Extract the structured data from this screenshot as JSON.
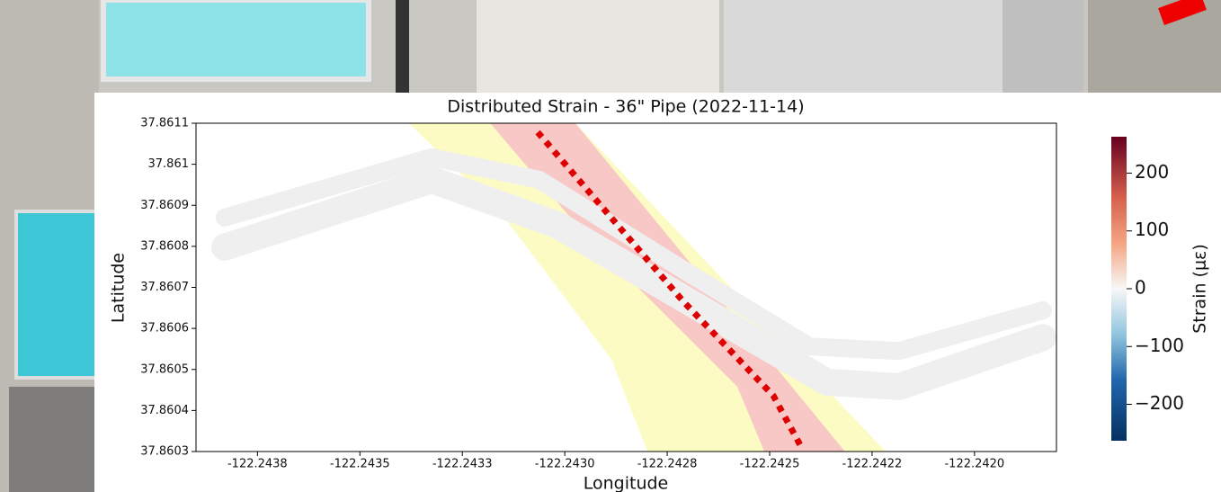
{
  "chart_data": {
    "type": "map",
    "title": "Distributed Strain - 36\" Pipe (2022-11-14)",
    "xlabel": "Longitude",
    "ylabel": "Latitude",
    "xlim": [
      -122.2439,
      -122.2418
    ],
    "ylim": [
      37.8603,
      37.8611
    ],
    "xticks": [
      {
        "value": -122.24375,
        "label": "-122.2438"
      },
      -122.2435,
      {
        "value": -122.24325,
        "label": "-122.2433"
      },
      {
        "value": -122.243,
        "label": "-122.2430"
      },
      {
        "value": -122.24275,
        "label": "-122.2428"
      },
      -122.2425,
      {
        "value": -122.24225,
        "label": "-122.2422"
      },
      {
        "value": -122.242,
        "label": "-122.2420"
      }
    ],
    "yticks": [
      37.8603,
      37.8604,
      37.8605,
      37.8606,
      37.8607,
      37.8608,
      37.8609,
      37.861,
      37.8611
    ],
    "areas": [
      {
        "color": "#fdfbc4",
        "x": [
          -122.24338,
          -122.242974,
          -122.242217,
          -122.242798,
          -122.242886,
          -122.24315
        ],
        "y": [
          37.8611,
          37.8611,
          37.8603,
          37.8603,
          37.860524,
          37.860874
        ]
      },
      {
        "color": "#f8c8c6",
        "x": [
          -122.243182,
          -122.242974,
          -122.242316,
          -122.242513,
          -122.242579,
          -122.242952
        ],
        "y": [
          37.8611,
          37.8611,
          37.8603,
          37.8603,
          37.860458,
          37.86083
        ]
      }
    ],
    "series": [
      {
        "color": "#efefef",
        "linestyle": "solid",
        "x": [
          -122.24383,
          -122.243325,
          -122.243062,
          -122.242711,
          -122.242403,
          -122.242184,
          -122.241833
        ],
        "y": [
          37.86087,
          37.861017,
          37.860962,
          37.860743,
          37.860556,
          37.860545,
          37.860644
        ]
      },
      {
        "color": "#efefef",
        "linestyle": "solid",
        "x": [
          -122.24383,
          -122.243325,
          -122.243018,
          -122.242623,
          -122.24236,
          -122.242184,
          -122.241833
        ],
        "y": [
          37.860798,
          37.860962,
          37.860852,
          37.860622,
          37.860469,
          37.860458,
          37.860578
        ]
      },
      {
        "color": "#dd0000",
        "linestyle": "dotted",
        "x": [
          -122.243066,
          -122.242711,
          -122.242491,
          -122.242425
        ],
        "y": [
          37.861078,
          37.860666,
          37.860436,
          37.860315
        ]
      }
    ],
    "colorbar": {
      "label": "Strain (με)",
      "clim": [
        -263,
        263
      ],
      "ticks": [
        {
          "value": -200,
          "label": "−200"
        },
        {
          "value": -100,
          "label": "−100"
        },
        0,
        100,
        200
      ]
    }
  }
}
